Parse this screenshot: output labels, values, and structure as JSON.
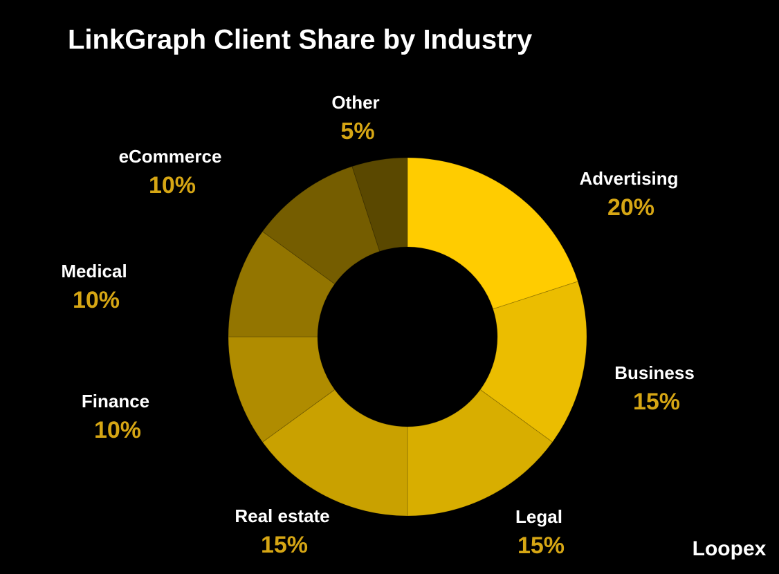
{
  "chart_data": {
    "type": "donut",
    "title": "LinkGraph Client Share by Industry",
    "categories": [
      "Advertising",
      "Business",
      "Legal",
      "Real estate",
      "Finance",
      "Medical",
      "eCommerce",
      "Other"
    ],
    "values": [
      20,
      15,
      15,
      15,
      10,
      10,
      10,
      5
    ],
    "value_labels": [
      "20%",
      "15%",
      "15%",
      "15%",
      "10%",
      "10%",
      "10%",
      "5%"
    ],
    "colors": [
      "#ffcc00",
      "#ebbd00",
      "#d8ae00",
      "#c9a100",
      "#b08c00",
      "#937500",
      "#755d00",
      "#5a4800"
    ],
    "watermark": "Loopex"
  }
}
